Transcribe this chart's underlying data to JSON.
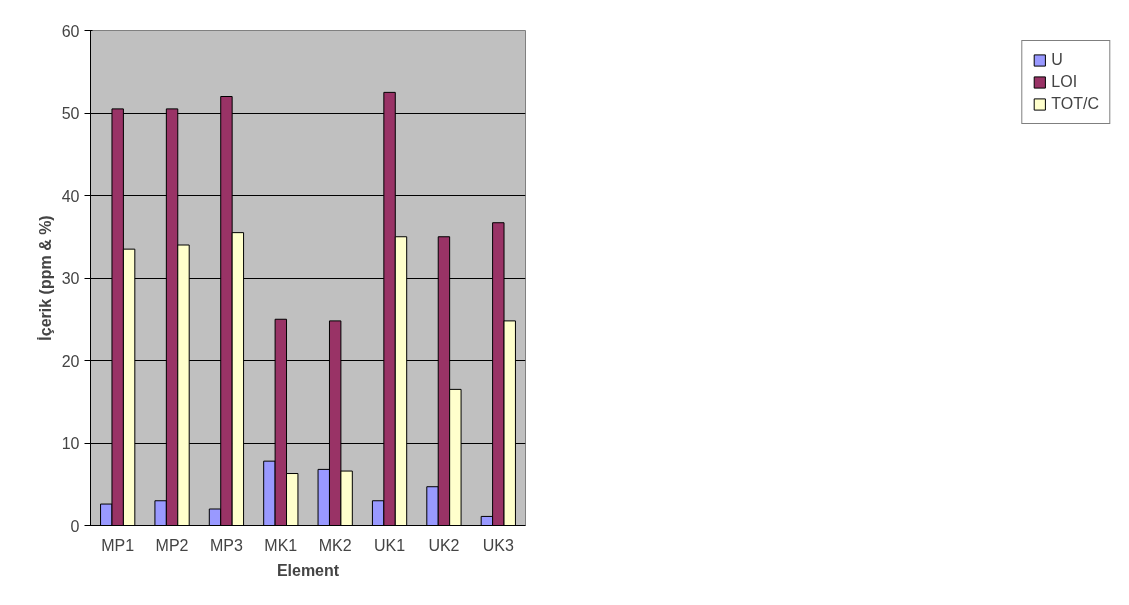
{
  "chart_data": {
    "type": "bar",
    "xlabel": "Element",
    "ylabel": "İçerik (ppm & %)",
    "categories": [
      "MP1",
      "MP2",
      "MP3",
      "MK1",
      "MK2",
      "UK1",
      "UK2",
      "UK3"
    ],
    "series": [
      {
        "name": "U",
        "color": "#9999ff",
        "values": [
          2.6,
          3,
          2,
          7.8,
          6.8,
          3,
          4.7,
          1.1
        ]
      },
      {
        "name": "LOI",
        "color": "#993366",
        "values": [
          50.5,
          50.5,
          52,
          25,
          24.8,
          52.5,
          35,
          36.7
        ]
      },
      {
        "name": "TOT/C",
        "color": "#ffffcc",
        "values": [
          33.5,
          34,
          35.5,
          6.3,
          6.6,
          35,
          16.5,
          24.8
        ]
      }
    ],
    "ylim": [
      0,
      60
    ],
    "yticks": [
      0,
      10,
      20,
      30,
      40,
      50,
      60
    ],
    "grid": "y",
    "legend": "right"
  }
}
